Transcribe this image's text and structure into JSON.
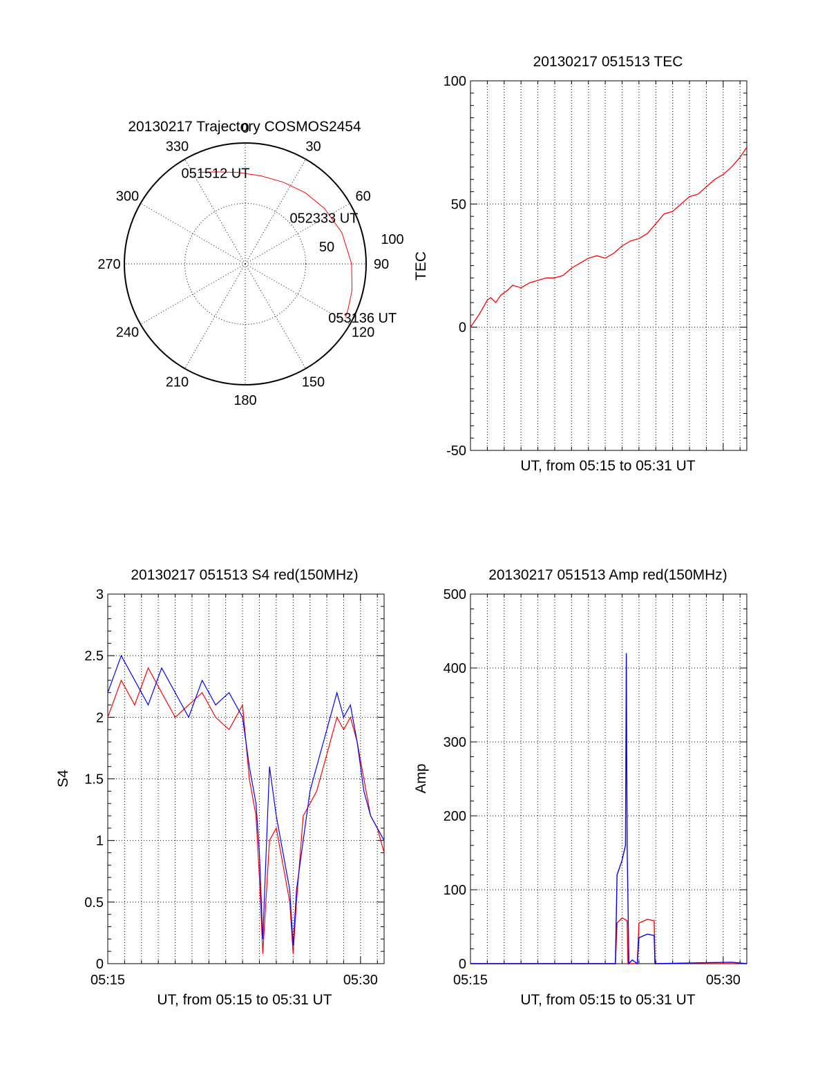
{
  "chart_data": [
    {
      "type": "polar",
      "title": "20130217 Trajectory COSMOS2454",
      "azimuth_labels": [
        "0",
        "30",
        "60",
        "90",
        "120",
        "150",
        "180",
        "210",
        "240",
        "270",
        "300",
        "330"
      ],
      "ring_labels": [
        "50",
        "100"
      ],
      "rings": [
        0,
        50,
        100
      ],
      "trajectory_color": "#ff0000",
      "trajectory": [
        {
          "az": 333,
          "zen": 85
        },
        {
          "az": 342,
          "zen": 80
        },
        {
          "az": 355,
          "zen": 76
        },
        {
          "az": 10,
          "zen": 74
        },
        {
          "az": 25,
          "zen": 74.5
        },
        {
          "az": 40,
          "zen": 77
        },
        {
          "az": 55,
          "zen": 80
        },
        {
          "az": 72,
          "zen": 84
        },
        {
          "az": 90,
          "zen": 88
        },
        {
          "az": 104,
          "zen": 91
        },
        {
          "az": 114,
          "zen": 93
        },
        {
          "az": 118,
          "zen": 94
        }
      ],
      "annotations": [
        {
          "text": "051512 UT",
          "az": 333,
          "zen": 85
        },
        {
          "text": "052333 UT",
          "az": 53,
          "zen": 64
        },
        {
          "text": "053136 UT",
          "az": 118,
          "zen": 94
        }
      ]
    },
    {
      "type": "line",
      "title": "20130217 051513 TEC",
      "xlabel": "UT, from 05:15 to 05:31 UT",
      "ylabel": "TEC",
      "ylim": [
        -50,
        100
      ],
      "yticks": [
        "100",
        "50",
        "0",
        "-50"
      ],
      "xlim": [
        0,
        16.4
      ],
      "grid": true,
      "series": [
        {
          "color": "#ff0000",
          "x": [
            0,
            0.5,
            1.0,
            1.2,
            1.5,
            1.8,
            2.2,
            2.5,
            3.0,
            3.5,
            4.0,
            4.5,
            5.0,
            5.5,
            6.0,
            6.5,
            7.0,
            7.5,
            8.0,
            8.5,
            9.0,
            9.5,
            10.0,
            10.5,
            11.0,
            11.5,
            12.0,
            12.5,
            13.0,
            13.5,
            14.0,
            14.5,
            15.0,
            15.5,
            16.0,
            16.4
          ],
          "y": [
            0,
            5,
            11,
            12,
            10,
            13,
            15,
            17,
            16,
            18,
            19,
            20,
            20,
            21,
            24,
            26,
            28,
            29,
            28,
            30,
            33,
            35,
            36,
            38,
            42,
            46,
            47,
            50,
            53,
            54,
            57,
            60,
            62,
            65,
            69,
            73
          ]
        }
      ]
    },
    {
      "type": "line",
      "title": "20130217 051513 S4 red(150MHz)",
      "xlabel": "UT, from 05:15 to 05:31 UT",
      "ylabel": "S4",
      "ylim": [
        0,
        3
      ],
      "yticks": [
        "3",
        "2.5",
        "2",
        "1.5",
        "1",
        "0.5",
        "0"
      ],
      "xticks": [
        "05:15",
        "05:30"
      ],
      "xlim": [
        0,
        16.4
      ],
      "grid": true,
      "series": [
        {
          "color": "#ff0000",
          "x": [
            0,
            0.8,
            1.6,
            2.4,
            3.2,
            4.0,
            4.8,
            5.6,
            6.4,
            7.2,
            8.0,
            8.4,
            8.8,
            9.0,
            9.2,
            9.6,
            10.0,
            10.4,
            10.8,
            11.0,
            11.2,
            11.6,
            12.0,
            12.4,
            12.8,
            13.2,
            13.6,
            14.0,
            14.4,
            14.8,
            15.2,
            15.6,
            16.0,
            16.4
          ],
          "y": [
            2.0,
            2.3,
            2.1,
            2.4,
            2.2,
            2.0,
            2.1,
            2.2,
            2.0,
            1.9,
            2.1,
            1.5,
            1.2,
            0.7,
            0.08,
            1.0,
            1.1,
            0.8,
            0.5,
            0.08,
            0.5,
            1.2,
            1.3,
            1.4,
            1.6,
            1.8,
            2.0,
            1.9,
            2.0,
            1.8,
            1.5,
            1.2,
            1.1,
            0.9
          ]
        },
        {
          "color": "#0000ff",
          "x": [
            0,
            0.8,
            1.6,
            2.4,
            3.2,
            4.0,
            4.8,
            5.6,
            6.4,
            7.2,
            8.0,
            8.4,
            8.8,
            9.0,
            9.2,
            9.6,
            10.0,
            10.4,
            10.8,
            11.0,
            11.2,
            11.6,
            12.0,
            12.4,
            12.8,
            13.2,
            13.6,
            14.0,
            14.4,
            14.8,
            15.2,
            15.6,
            16.0,
            16.4
          ],
          "y": [
            2.2,
            2.5,
            2.3,
            2.1,
            2.4,
            2.2,
            2.0,
            2.3,
            2.1,
            2.2,
            2.0,
            1.6,
            1.3,
            0.9,
            0.2,
            1.6,
            1.2,
            0.9,
            0.6,
            0.15,
            0.6,
            1.0,
            1.4,
            1.6,
            1.8,
            2.0,
            2.2,
            2.0,
            2.1,
            1.8,
            1.4,
            1.2,
            1.1,
            1.0
          ]
        }
      ]
    },
    {
      "type": "line",
      "title": "20130217 051513 Amp red(150MHz)",
      "xlabel": "UT, from 05:15 to 05:31 UT",
      "ylabel": "Amp",
      "ylim": [
        0,
        500
      ],
      "yticks": [
        "500",
        "400",
        "300",
        "200",
        "100",
        "0"
      ],
      "xticks": [
        "05:15",
        "05:30"
      ],
      "xlim": [
        0,
        16.4
      ],
      "grid": true,
      "series": [
        {
          "color": "#ff0000",
          "x": [
            0,
            8.5,
            8.6,
            8.7,
            9.0,
            9.3,
            9.35,
            9.4,
            9.6,
            9.9,
            10.0,
            10.5,
            10.9,
            10.95,
            11.0,
            16.4
          ],
          "y": [
            0,
            0,
            0,
            55,
            62,
            58,
            0,
            0,
            0,
            0,
            55,
            60,
            58,
            0,
            0,
            0
          ]
        },
        {
          "color": "#0000ff",
          "x": [
            0,
            8.5,
            8.6,
            8.7,
            9.0,
            9.2,
            9.25,
            9.3,
            9.4,
            9.6,
            9.9,
            10.0,
            10.5,
            10.9,
            10.95,
            11.0,
            15.5,
            16.4
          ],
          "y": [
            0,
            0,
            0,
            120,
            140,
            160,
            420,
            160,
            0,
            5,
            0,
            35,
            40,
            38,
            0,
            0,
            2,
            0
          ]
        }
      ]
    }
  ]
}
